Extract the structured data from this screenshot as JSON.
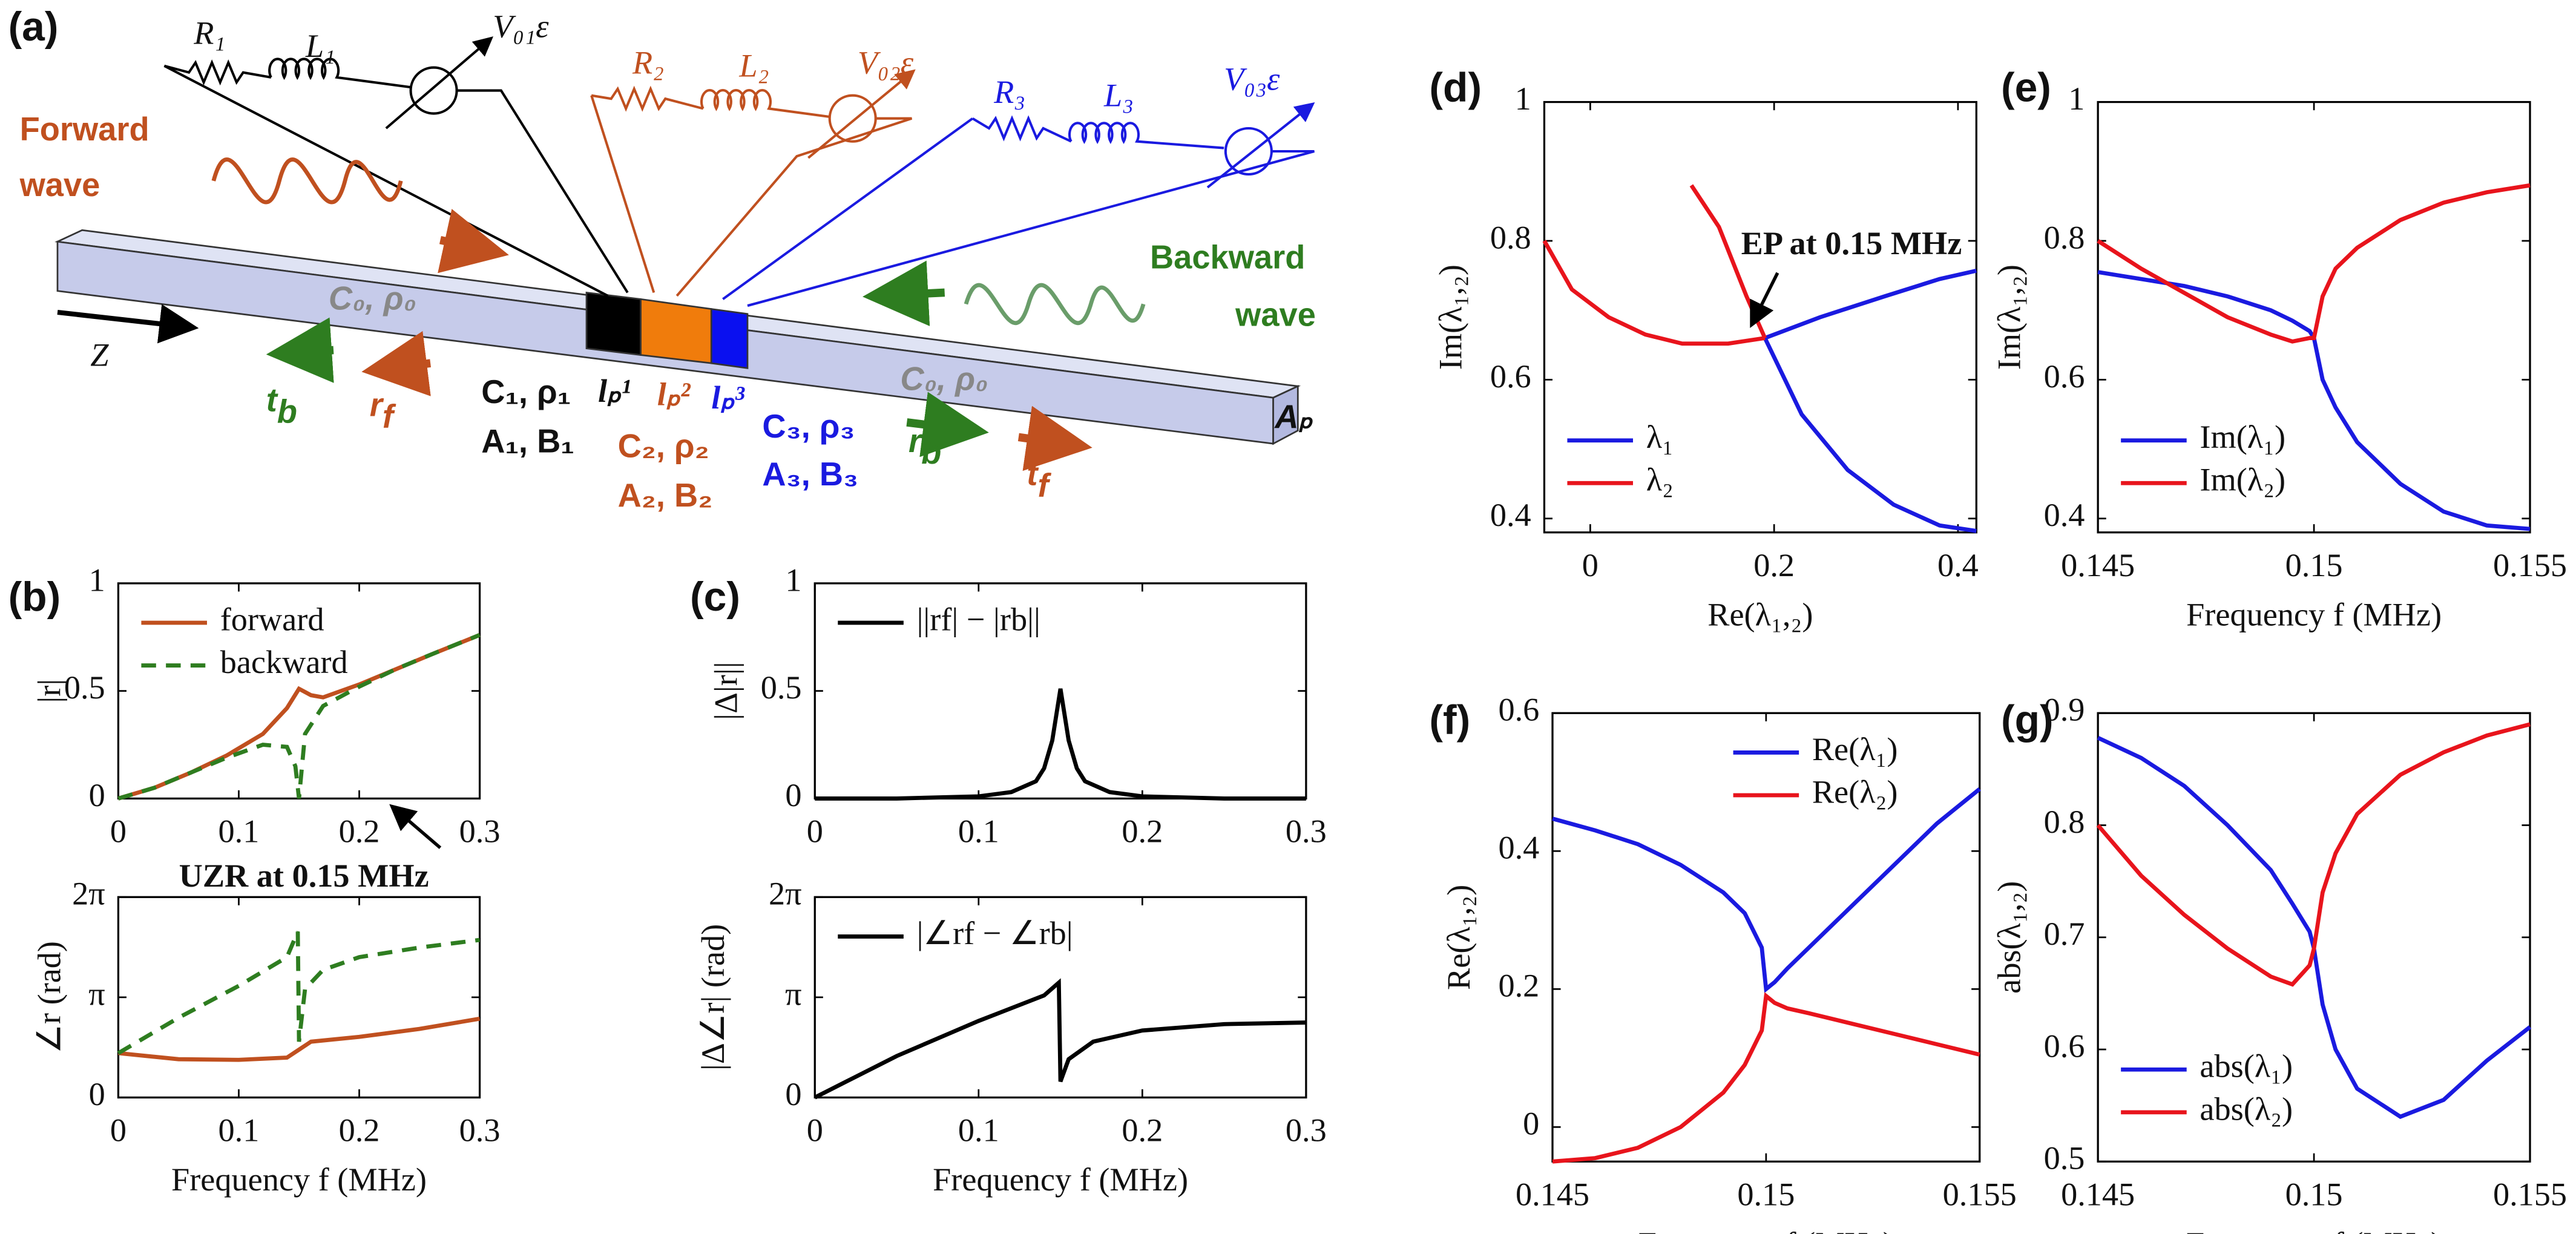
{
  "diagram": {
    "panel_label": "(a)",
    "R1": "R₁",
    "L1": "L₁",
    "V01": "V₀₁ε",
    "R2": "R₂",
    "L2": "L₂",
    "V02": "V₀₂ε",
    "R3": "R₃",
    "L3": "L₃",
    "V03": "V₀₃ε",
    "forward_wave": [
      "Forward",
      "wave"
    ],
    "backward_wave": [
      "Backward",
      "wave"
    ],
    "medium_left": "C₀, ρ₀",
    "medium_right": "C₀, ρ₀",
    "z": "Z",
    "t_b": {
      "main": "t",
      "sub": "b"
    },
    "r_f": {
      "main": "r",
      "sub": "f"
    },
    "r_b": {
      "main": "r",
      "sub": "b"
    },
    "t_f": {
      "main": "t",
      "sub": "f"
    },
    "layer1": [
      "C₁, ρ₁",
      "A₁, B₁"
    ],
    "layer2": [
      "C₂, ρ₂",
      "A₂, B₂"
    ],
    "layer3": [
      "C₃, ρ₃",
      "A₃, B₃"
    ],
    "lp1": "lₚ¹",
    "lp2": "lₚ²",
    "lp3": "lₚ³",
    "area": "Aₚ"
  },
  "chart_data": [
    {
      "type": "line",
      "panel_label": "(b)",
      "ylabel": "|r|",
      "annotation": "UZR at 0.15 MHz",
      "xlim": [
        0,
        0.3
      ],
      "xticks": [
        0,
        0.1,
        0.2,
        0.3
      ],
      "ylim": [
        0,
        1
      ],
      "yticks": [
        0,
        0.5,
        1
      ],
      "legend": "upper left",
      "series": [
        {
          "name": "forward",
          "color": "#c0501f",
          "dash": false,
          "x": [
            0,
            0.03,
            0.06,
            0.09,
            0.12,
            0.14,
            0.15,
            0.16,
            0.17,
            0.2,
            0.23,
            0.26,
            0.3
          ],
          "values": [
            0,
            0.05,
            0.12,
            0.2,
            0.3,
            0.42,
            0.51,
            0.48,
            0.47,
            0.53,
            0.6,
            0.67,
            0.76
          ]
        },
        {
          "name": "backward",
          "color": "#2e7d20",
          "dash": true,
          "x": [
            0,
            0.03,
            0.06,
            0.09,
            0.12,
            0.14,
            0.147,
            0.15,
            0.155,
            0.17,
            0.2,
            0.23,
            0.26,
            0.3
          ],
          "values": [
            0,
            0.05,
            0.12,
            0.19,
            0.25,
            0.24,
            0.15,
            0,
            0.3,
            0.43,
            0.52,
            0.6,
            0.67,
            0.76
          ]
        }
      ]
    },
    {
      "type": "line",
      "ylabel": "∠r (rad)",
      "xlabel": "Frequency f (MHz)",
      "xlim": [
        0,
        0.3
      ],
      "xticks": [
        0,
        0.1,
        0.2,
        0.3
      ],
      "ylim": [
        0,
        6.2832
      ],
      "yticks": [
        0,
        {
          "value": 3.1416,
          "label": "π"
        },
        {
          "value": 6.2832,
          "label": "2π"
        }
      ],
      "series": [
        {
          "color": "#c0501f",
          "dash": false,
          "x": [
            0,
            0.05,
            0.1,
            0.14,
            0.15,
            0.16,
            0.2,
            0.25,
            0.3
          ],
          "values": [
            1.39,
            1.2,
            1.18,
            1.25,
            1.5,
            1.75,
            1.9,
            2.15,
            2.47
          ]
        },
        {
          "color": "#2e7d20",
          "dash": true,
          "x": [
            0,
            0.05,
            0.1,
            0.14,
            0.149,
            0.15,
            0.155,
            0.17,
            0.2,
            0.25,
            0.3
          ],
          "values": [
            1.39,
            2.5,
            3.5,
            4.4,
            5.2,
            1.75,
            3.4,
            4.0,
            4.4,
            4.7,
            4.94
          ]
        }
      ]
    },
    {
      "type": "line",
      "panel_label": "(c)",
      "ylabel": "|Δ|r||",
      "xlim": [
        0,
        0.3
      ],
      "xticks": [
        0,
        0.1,
        0.2,
        0.3
      ],
      "ylim": [
        0,
        1
      ],
      "yticks": [
        0,
        0.5,
        1
      ],
      "legend": "upper left",
      "series": [
        {
          "name": "||rf| − |rb||",
          "color": "#000000",
          "dash": false,
          "x": [
            0,
            0.05,
            0.1,
            0.12,
            0.135,
            0.14,
            0.145,
            0.15,
            0.155,
            0.16,
            0.165,
            0.18,
            0.2,
            0.25,
            0.3
          ],
          "values": [
            0,
            0,
            0.01,
            0.03,
            0.08,
            0.14,
            0.27,
            0.51,
            0.27,
            0.14,
            0.08,
            0.03,
            0.01,
            0,
            0
          ]
        }
      ]
    },
    {
      "type": "line",
      "ylabel": "|Δ∠r| (rad)",
      "xlabel": "Frequency f (MHz)",
      "xlim": [
        0,
        0.3
      ],
      "xticks": [
        0,
        0.1,
        0.2,
        0.3
      ],
      "ylim": [
        0,
        6.2832
      ],
      "yticks": [
        0,
        {
          "value": 3.1416,
          "label": "π"
        },
        {
          "value": 6.2832,
          "label": "2π"
        }
      ],
      "legend": "upper left",
      "series": [
        {
          "name": "|∠rf − ∠rb|",
          "color": "#000000",
          "dash": false,
          "x": [
            0,
            0.05,
            0.1,
            0.14,
            0.149,
            0.15,
            0.155,
            0.17,
            0.2,
            0.25,
            0.3
          ],
          "values": [
            0,
            1.3,
            2.4,
            3.2,
            3.6,
            0.5,
            1.2,
            1.75,
            2.1,
            2.3,
            2.35
          ]
        }
      ]
    },
    {
      "type": "line",
      "panel_label": "(d)",
      "ylabel": "Im(λ₁,₂)",
      "xlabel": "Re(λ₁,₂)",
      "annotation": "EP at 0.15 MHz",
      "xlim": [
        -0.05,
        0.42
      ],
      "xticks": [
        0,
        0.2,
        0.4
      ],
      "ylim": [
        0.38,
        1
      ],
      "yticks": [
        0.4,
        0.6,
        0.8,
        1
      ],
      "legend": "lower left",
      "series": [
        {
          "name": "λ₁",
          "color": "#1a1ae0",
          "dash": false,
          "x": [
            0.19,
            0.25,
            0.32,
            0.38,
            0.42,
            null,
            0.19,
            0.23,
            0.28,
            0.33,
            0.38,
            0.42
          ],
          "values": [
            0.66,
            0.69,
            0.72,
            0.745,
            0.757,
            null,
            0.66,
            0.55,
            0.47,
            0.42,
            0.39,
            0.382
          ]
        },
        {
          "name": "λ₂",
          "color": "#e8141c",
          "dash": false,
          "x": [
            -0.05,
            -0.02,
            0.02,
            0.06,
            0.1,
            0.15,
            0.19,
            null,
            0.11,
            0.14,
            0.17,
            0.19
          ],
          "values": [
            0.8,
            0.73,
            0.69,
            0.665,
            0.652,
            0.652,
            0.66,
            null,
            0.88,
            0.82,
            0.72,
            0.66
          ]
        }
      ]
    },
    {
      "type": "line",
      "panel_label": "(e)",
      "ylabel": "Im(λ₁,₂)",
      "xlabel": "Frequency f (MHz)",
      "xlim": [
        0.145,
        0.155
      ],
      "xticks": [
        0.145,
        0.15,
        0.155
      ],
      "ylim": [
        0.38,
        1
      ],
      "yticks": [
        0.4,
        0.6,
        0.8,
        1
      ],
      "legend": "lower left",
      "series": [
        {
          "name": "Im(λ₁)",
          "color": "#1a1ae0",
          "dash": false,
          "x": [
            0.145,
            0.146,
            0.147,
            0.148,
            0.149,
            0.1495,
            0.1499,
            0.15,
            0.1502,
            0.1505,
            0.151,
            0.152,
            0.153,
            0.154,
            0.155
          ],
          "values": [
            0.755,
            0.745,
            0.735,
            0.72,
            0.7,
            0.685,
            0.67,
            0.66,
            0.6,
            0.56,
            0.51,
            0.45,
            0.41,
            0.39,
            0.385
          ]
        },
        {
          "name": "Im(λ₂)",
          "color": "#e8141c",
          "dash": false,
          "x": [
            0.145,
            0.146,
            0.147,
            0.148,
            0.149,
            0.1495,
            0.1499,
            0.15,
            0.1502,
            0.1505,
            0.151,
            0.152,
            0.153,
            0.154,
            0.155
          ],
          "values": [
            0.8,
            0.76,
            0.725,
            0.69,
            0.665,
            0.655,
            0.66,
            0.66,
            0.72,
            0.76,
            0.79,
            0.83,
            0.855,
            0.87,
            0.88
          ]
        }
      ]
    },
    {
      "type": "line",
      "panel_label": "(f)",
      "ylabel": "Re(λ₁,₂)",
      "xlabel": "Frequency f (MHz)",
      "xlim": [
        0.145,
        0.155
      ],
      "xticks": [
        0.145,
        0.15,
        0.155
      ],
      "ylim": [
        -0.05,
        0.6
      ],
      "yticks": [
        0,
        0.2,
        0.4,
        0.6
      ],
      "legend": "upper right",
      "series": [
        {
          "name": "Re(λ₁)",
          "color": "#1a1ae0",
          "dash": false,
          "x": [
            0.145,
            0.146,
            0.147,
            0.148,
            0.149,
            0.1495,
            0.1499,
            0.15,
            0.1502,
            0.1505,
            0.151,
            0.152,
            0.153,
            0.154,
            0.155
          ],
          "values": [
            0.447,
            0.43,
            0.41,
            0.38,
            0.34,
            0.31,
            0.26,
            0.2,
            0.21,
            0.23,
            0.26,
            0.32,
            0.38,
            0.44,
            0.49
          ]
        },
        {
          "name": "Re(λ₂)",
          "color": "#e8141c",
          "dash": false,
          "x": [
            0.145,
            0.146,
            0.147,
            0.148,
            0.149,
            0.1495,
            0.1499,
            0.15,
            0.1502,
            0.1505,
            0.151,
            0.152,
            0.153,
            0.154,
            0.155
          ],
          "values": [
            -0.05,
            -0.045,
            -0.03,
            0,
            0.05,
            0.09,
            0.14,
            0.19,
            0.18,
            0.172,
            0.165,
            0.15,
            0.135,
            0.12,
            0.105
          ]
        }
      ]
    },
    {
      "type": "line",
      "panel_label": "(g)",
      "ylabel": "abs(λ₁,₂)",
      "xlabel": "Frequency f (MHz)",
      "xlim": [
        0.145,
        0.155
      ],
      "xticks": [
        0.145,
        0.15,
        0.155
      ],
      "ylim": [
        0.5,
        0.9
      ],
      "yticks": [
        0.5,
        0.6,
        0.7,
        0.8,
        0.9
      ],
      "legend": "lower left",
      "series": [
        {
          "name": "abs(λ₁)",
          "color": "#1a1ae0",
          "dash": false,
          "x": [
            0.145,
            0.146,
            0.147,
            0.148,
            0.149,
            0.1495,
            0.1499,
            0.15,
            0.1502,
            0.1505,
            0.151,
            0.152,
            0.153,
            0.154,
            0.155
          ],
          "values": [
            0.878,
            0.86,
            0.835,
            0.8,
            0.76,
            0.73,
            0.705,
            0.69,
            0.64,
            0.6,
            0.565,
            0.54,
            0.555,
            0.59,
            0.62
          ]
        },
        {
          "name": "abs(λ₂)",
          "color": "#e8141c",
          "dash": false,
          "x": [
            0.145,
            0.146,
            0.147,
            0.148,
            0.149,
            0.1495,
            0.1499,
            0.15,
            0.1502,
            0.1505,
            0.151,
            0.152,
            0.153,
            0.154,
            0.155
          ],
          "values": [
            0.8,
            0.755,
            0.72,
            0.69,
            0.665,
            0.658,
            0.675,
            0.69,
            0.74,
            0.775,
            0.81,
            0.845,
            0.865,
            0.88,
            0.89
          ]
        }
      ]
    }
  ]
}
